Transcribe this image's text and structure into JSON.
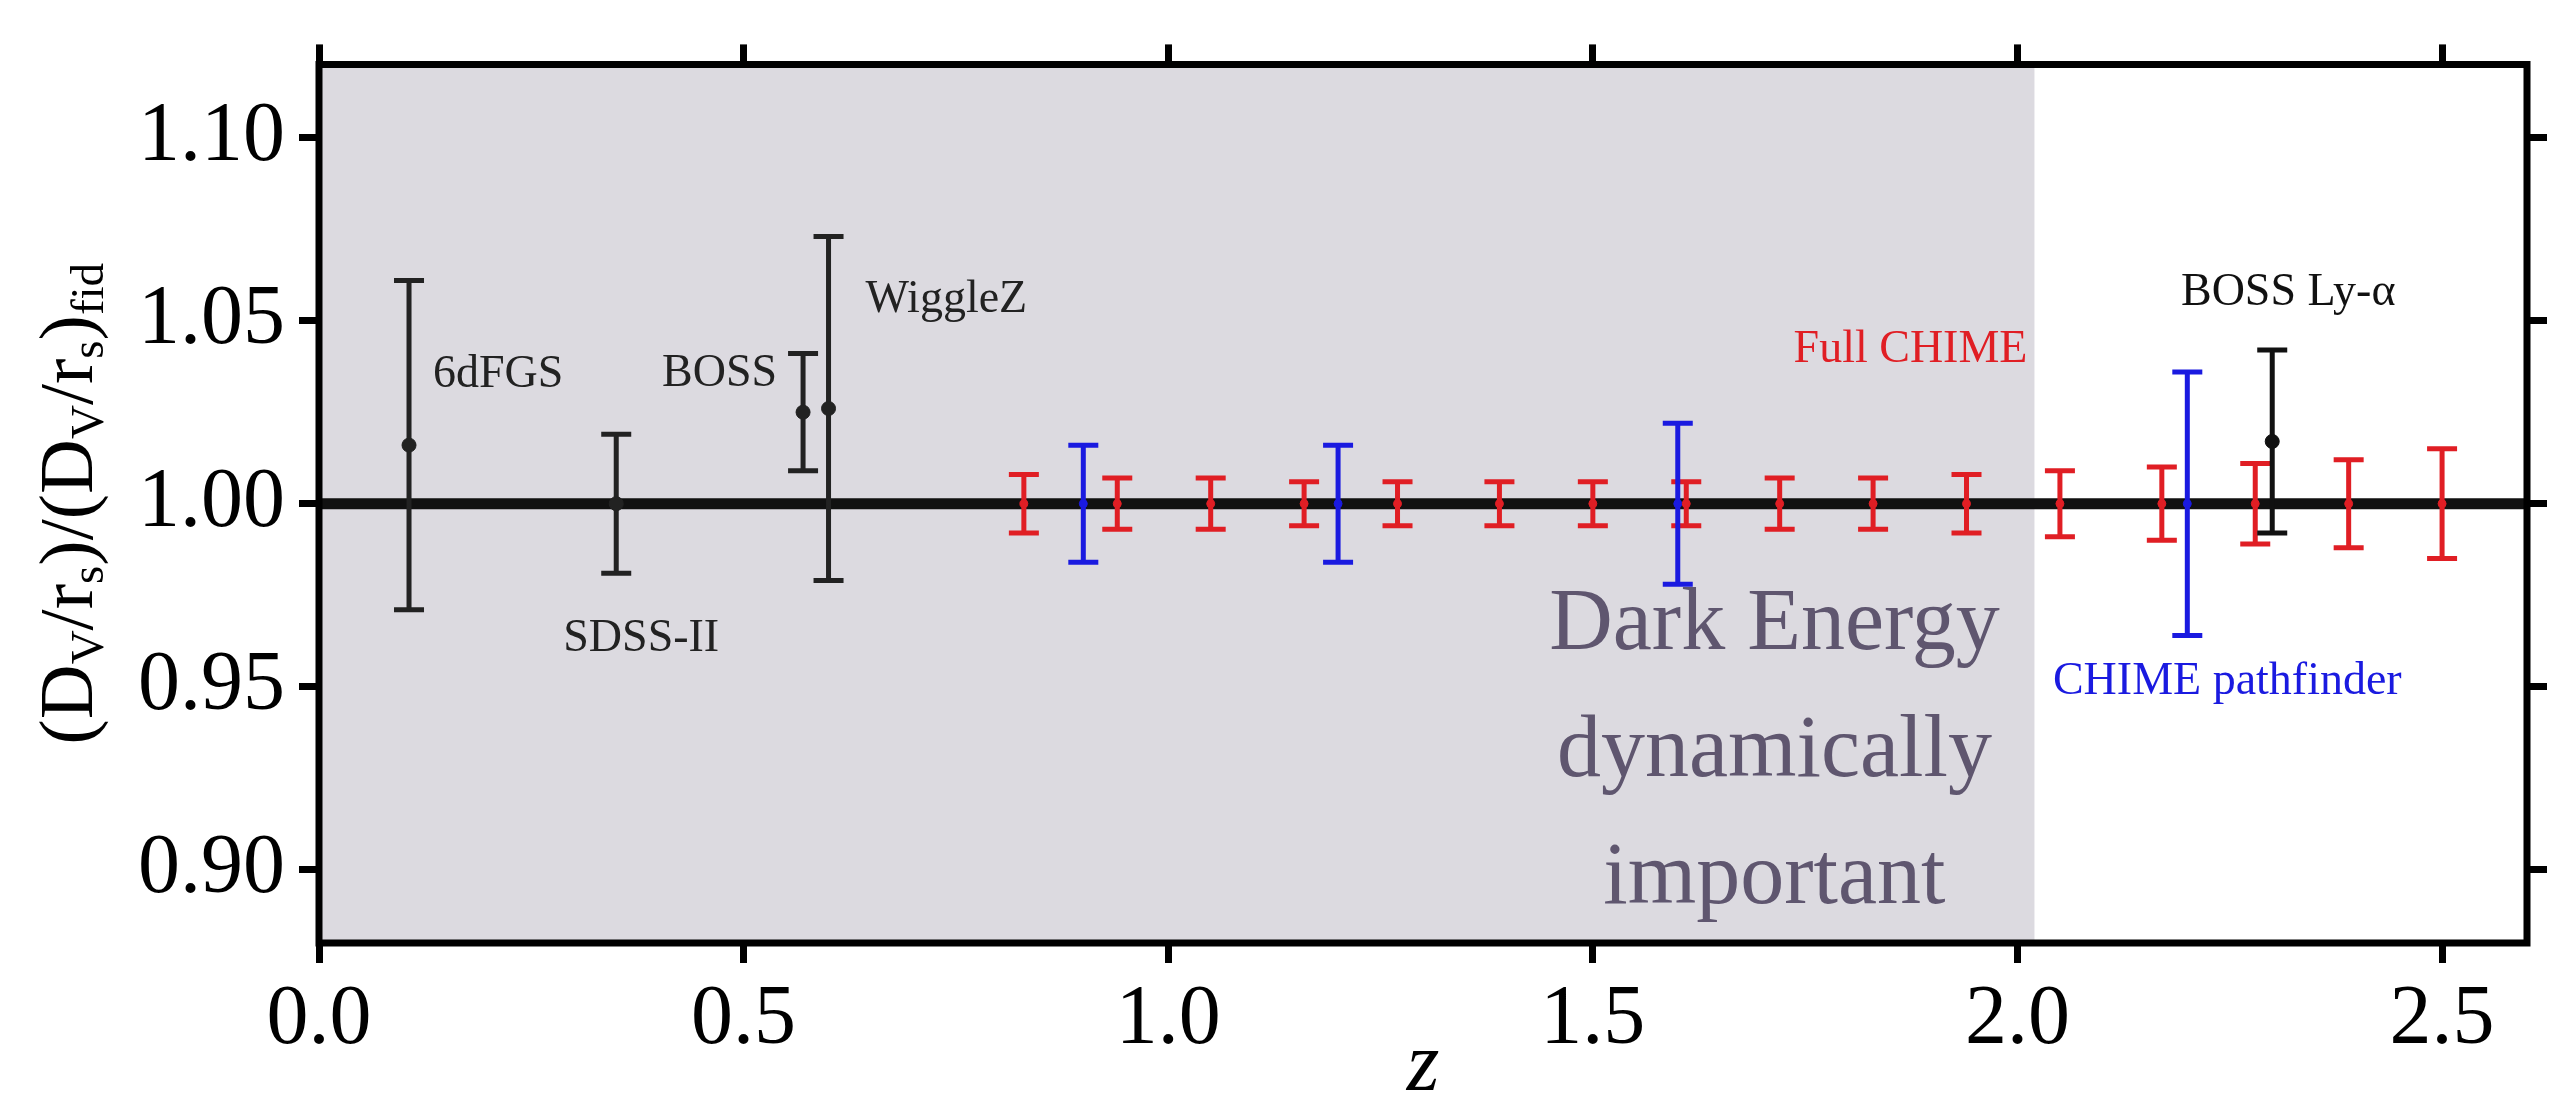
{
  "chart_data": {
    "type": "scatter",
    "xlabel": "z",
    "ylabel": "(D$_{V}$/r$_{s}$)/(D$_{V}$/r$_{s}$)$_{fid}$",
    "xlim": [
      0,
      2.6
    ],
    "ylim": [
      0.88,
      1.12
    ],
    "xticks": [
      {
        "value": 0,
        "label": "0.0"
      },
      {
        "value": 0.5,
        "label": "0.5"
      },
      {
        "value": 1,
        "label": "1.0"
      },
      {
        "value": 1.5,
        "label": "1.5"
      },
      {
        "value": 2,
        "label": "2.0"
      },
      {
        "value": 2.5,
        "label": "2.5"
      }
    ],
    "yticks": [
      {
        "value": 0.9,
        "label": "0.90"
      },
      {
        "value": 0.95,
        "label": "0.95"
      },
      {
        "value": 1,
        "label": "1.00"
      },
      {
        "value": 1.05,
        "label": "1.05"
      },
      {
        "value": 1.1,
        "label": "1.10"
      }
    ],
    "grid": false,
    "legend": false,
    "marker": "circle",
    "bands": [
      {
        "axis": "x",
        "from": 0,
        "to": 2.02,
        "label": "Dark Energy dynamically important",
        "color": "#dcdae0"
      }
    ],
    "ref_lines": [
      {
        "axis": "y",
        "value": 1,
        "color": "#111111"
      }
    ],
    "series": [
      {
        "name": "6dFGS",
        "color": "#222222",
        "marker": "circle",
        "x": [
          0.106
        ],
        "values": [
          1.016
        ],
        "errors": [
          0.045
        ]
      },
      {
        "name": "SDSS-II",
        "color": "#222222",
        "marker": "circle",
        "x": [
          0.35
        ],
        "values": [
          1.0
        ],
        "errors": [
          0.019
        ]
      },
      {
        "name": "BOSS",
        "color": "#222222",
        "marker": "circle",
        "x": [
          0.57
        ],
        "values": [
          1.025
        ],
        "errors": [
          0.016
        ]
      },
      {
        "name": "WiggleZ",
        "color": "#222222",
        "marker": "circle",
        "x": [
          0.6
        ],
        "values": [
          1.026
        ],
        "errors": [
          0.047
        ]
      },
      {
        "name": "Full CHIME",
        "color": "#e01e24",
        "x": [
          0.83,
          0.94,
          1.05,
          1.16,
          1.27,
          1.39,
          1.5,
          1.61,
          1.72,
          1.83,
          1.94,
          2.05,
          2.17,
          2.28,
          2.39,
          2.5
        ],
        "values": [
          1,
          1,
          1,
          1,
          1,
          1,
          1,
          1,
          1,
          1,
          1,
          1,
          1,
          1,
          1,
          1
        ],
        "errors": [
          0.008,
          0.007,
          0.007,
          0.006,
          0.006,
          0.006,
          0.006,
          0.006,
          0.007,
          0.007,
          0.008,
          0.009,
          0.01,
          0.011,
          0.012,
          0.015
        ]
      },
      {
        "name": "CHIME pathfinder",
        "color": "#1a1ae0",
        "x": [
          0.9,
          1.2,
          1.6,
          2.2
        ],
        "values": [
          1,
          1,
          1,
          1
        ],
        "errors": [
          0.016,
          0.016,
          0.022,
          0.036
        ]
      },
      {
        "name": "BOSS Ly-α",
        "color": "#111111",
        "marker": "circle",
        "x": [
          2.3
        ],
        "values": [
          1.017
        ],
        "errors": [
          0.025
        ]
      }
    ]
  }
}
